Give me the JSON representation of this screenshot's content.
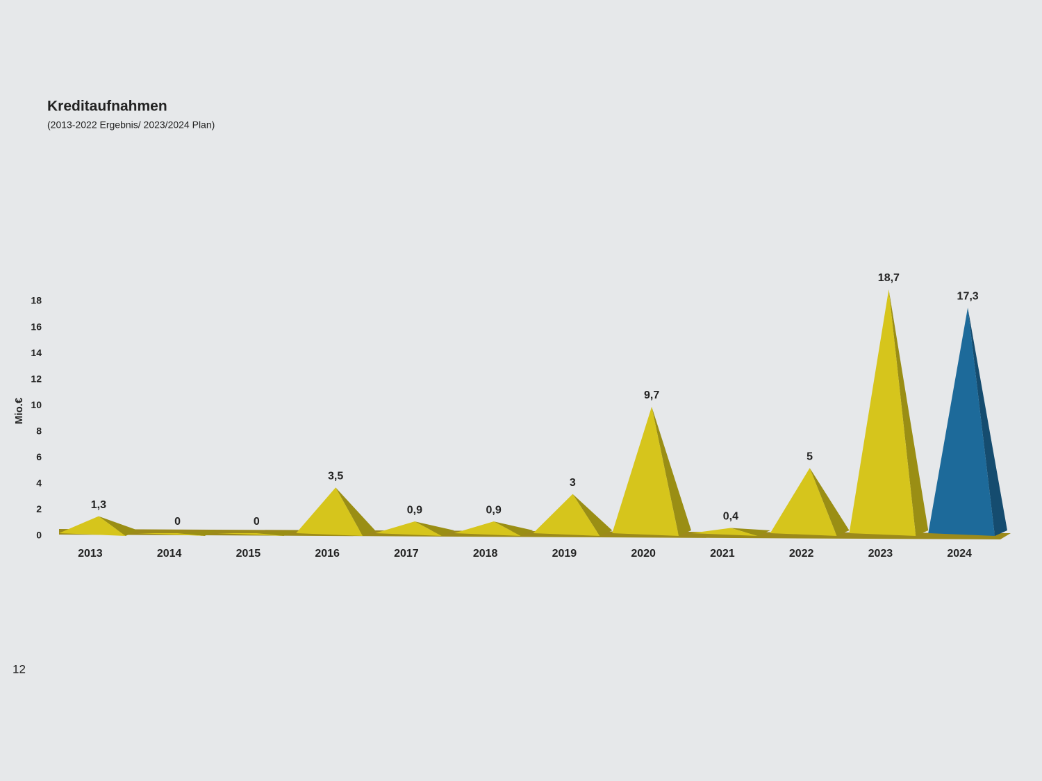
{
  "chart_data": {
    "type": "pyramid",
    "title": "Kreditaufnahmen",
    "subtitle": "(2013-2022 Ergebnis/ 2023/2024 Plan)",
    "y_label": "Mio.€",
    "categories": [
      "2013",
      "2014",
      "2015",
      "2016",
      "2017",
      "2018",
      "2019",
      "2020",
      "2021",
      "2022",
      "2023",
      "2024"
    ],
    "values": [
      1.3,
      0,
      0,
      3.5,
      0.9,
      0.9,
      3,
      9.7,
      0.4,
      5,
      18.7,
      17.3
    ],
    "value_labels": [
      "1,3",
      "0",
      "0",
      "3,5",
      "0,9",
      "0,9",
      "3",
      "9,7",
      "0,4",
      "5",
      "18,7",
      "17,3"
    ],
    "colors": [
      "#d6c51c",
      "#d6c51c",
      "#d6c51c",
      "#d6c51c",
      "#d6c51c",
      "#d6c51c",
      "#d6c51c",
      "#d6c51c",
      "#d6c51c",
      "#d6c51c",
      "#d6c51c",
      "#1d6a9a"
    ],
    "ylim": [
      0,
      18
    ],
    "yticks": [
      0,
      2,
      4,
      6,
      8,
      10,
      12,
      14,
      16,
      18
    ],
    "grid": false
  },
  "page_number": "12"
}
